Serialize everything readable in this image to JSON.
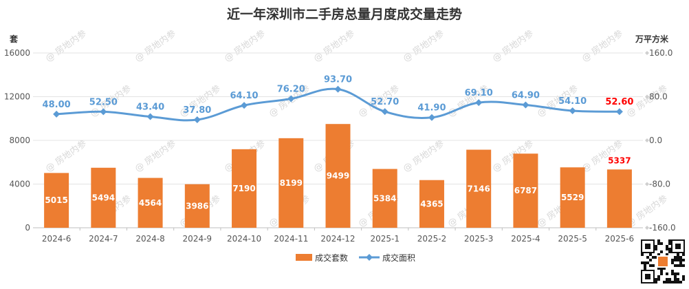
{
  "chart_data": {
    "type": "bar",
    "title": "近一年深圳市二手房总量月度成交量走势",
    "left_unit": "套",
    "right_unit": "万平方米",
    "categories": [
      "2024-6",
      "2024-7",
      "2024-8",
      "2024-9",
      "2024-10",
      "2024-11",
      "2024-12",
      "2025-1",
      "2025-2",
      "2025-3",
      "2025-4",
      "2025-5",
      "2025-6"
    ],
    "y_left": {
      "ticks": [
        "0",
        "4000",
        "8000",
        "12000",
        "16000"
      ],
      "range": [
        0,
        16000
      ]
    },
    "y_right": {
      "ticks": [
        "-160.0",
        "-80.0",
        "0.0",
        "80.0",
        "160.0"
      ],
      "range": [
        -160,
        160
      ]
    },
    "series": [
      {
        "name": "成交套数",
        "type": "bar",
        "axis": "left",
        "color": "#ED7D31",
        "values": [
          5015,
          5494,
          4564,
          3986,
          7190,
          8199,
          9499,
          5384,
          4365,
          7146,
          6787,
          5529,
          5337
        ],
        "labels": [
          "5015",
          "5494",
          "4564",
          "3986",
          "7190",
          "8199",
          "9499",
          "5384",
          "4365",
          "7146",
          "6787",
          "5529",
          "5337"
        ]
      },
      {
        "name": "成交面积",
        "type": "line",
        "axis": "right",
        "color": "#5B9BD5",
        "values": [
          48.0,
          52.5,
          43.4,
          37.8,
          64.1,
          76.2,
          93.7,
          52.7,
          41.9,
          69.1,
          64.9,
          54.1,
          52.6
        ],
        "labels": [
          "48.00",
          "52.50",
          "43.40",
          "37.80",
          "64.10",
          "76.20",
          "93.70",
          "52.70",
          "41.90",
          "69.10",
          "64.90",
          "54.10",
          "52.60"
        ]
      }
    ],
    "highlight_color": "#FF0000",
    "legend_position": "bottom",
    "grid": true
  },
  "watermark": "房地内参"
}
